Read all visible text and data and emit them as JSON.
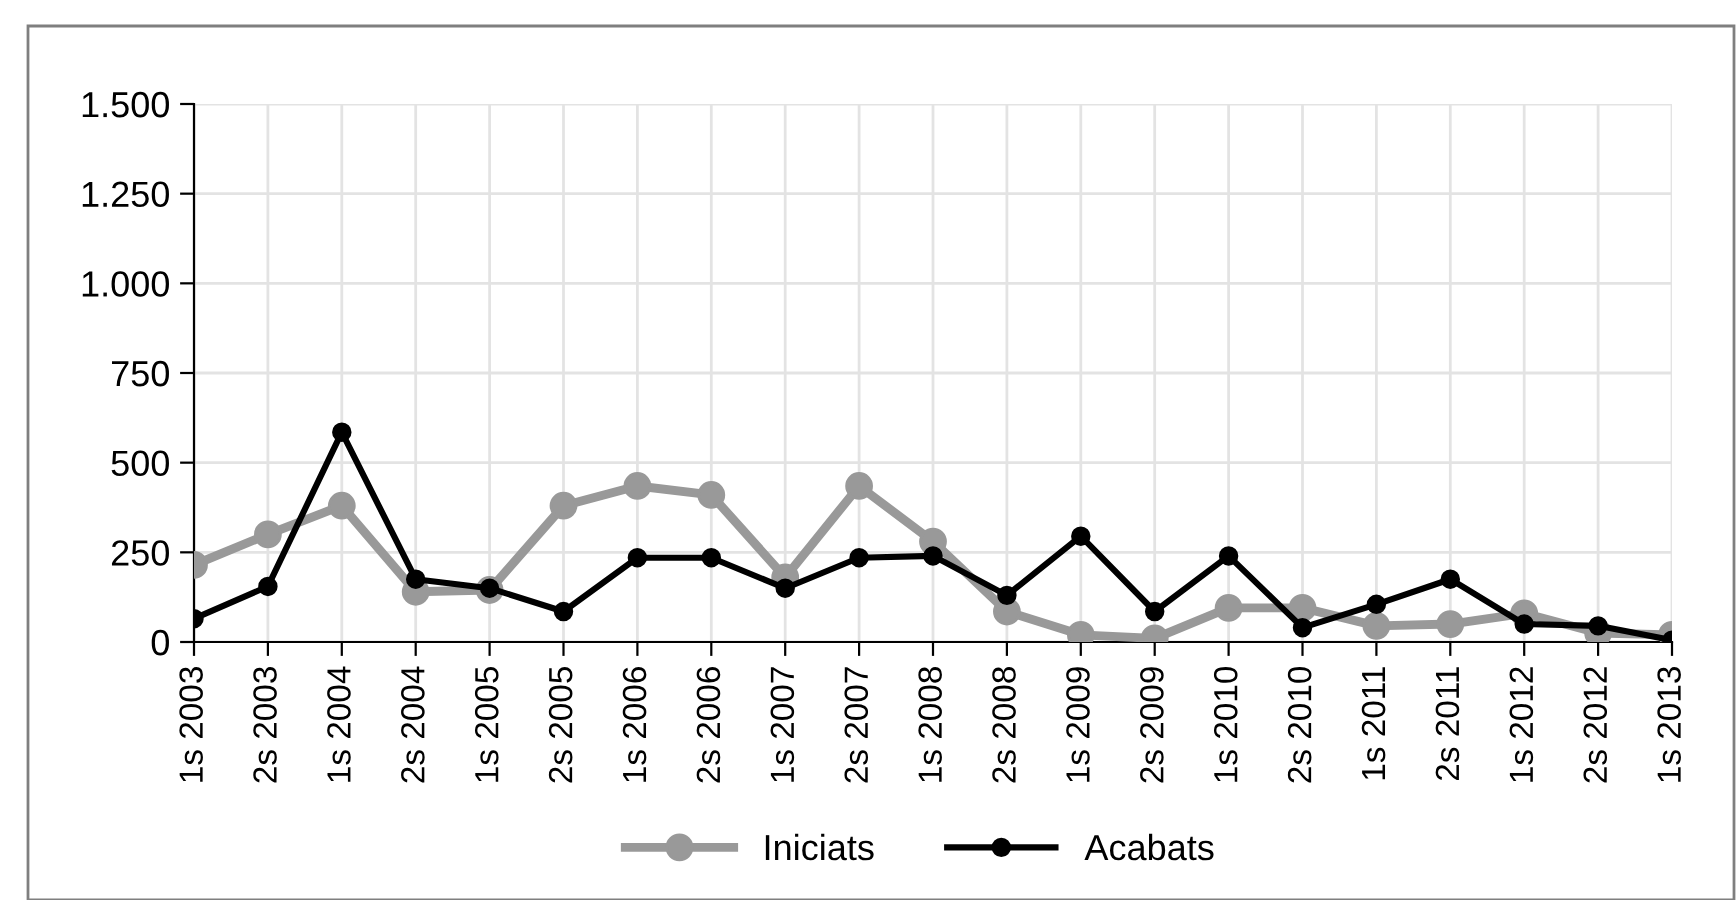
{
  "chart_data": {
    "type": "line",
    "categories": [
      "1s 2003",
      "2s 2003",
      "1s 2004",
      "2s 2004",
      "1s 2005",
      "2s 2005",
      "1s 2006",
      "2s 2006",
      "1s 2007",
      "2s 2007",
      "1s 2008",
      "2s 2008",
      "1s 2009",
      "2s 2009",
      "1s 2010",
      "2s 2010",
      "1s 2011",
      "2s 2011",
      "1s 2012",
      "2s 2012",
      "1s 2013"
    ],
    "series": [
      {
        "name": "Iniciats",
        "color": "#999999",
        "values": [
          215,
          300,
          380,
          140,
          145,
          380,
          435,
          410,
          180,
          435,
          280,
          85,
          20,
          10,
          95,
          95,
          45,
          50,
          80,
          25,
          20
        ]
      },
      {
        "name": "Acabats",
        "color": "#000000",
        "values": [
          65,
          155,
          585,
          175,
          150,
          85,
          235,
          235,
          150,
          235,
          240,
          130,
          295,
          85,
          240,
          40,
          105,
          175,
          50,
          45,
          5
        ]
      }
    ],
    "ylim": [
      0,
      1500
    ],
    "yticks": [
      0,
      250,
      500,
      750,
      {
        "value": 1000,
        "label": "1.000"
      },
      {
        "value": 1250,
        "label": "1.250"
      },
      {
        "value": 1500,
        "label": "1.500"
      }
    ],
    "grid": true,
    "legend": "bottom",
    "marker": "circle",
    "line_style": "solid"
  }
}
